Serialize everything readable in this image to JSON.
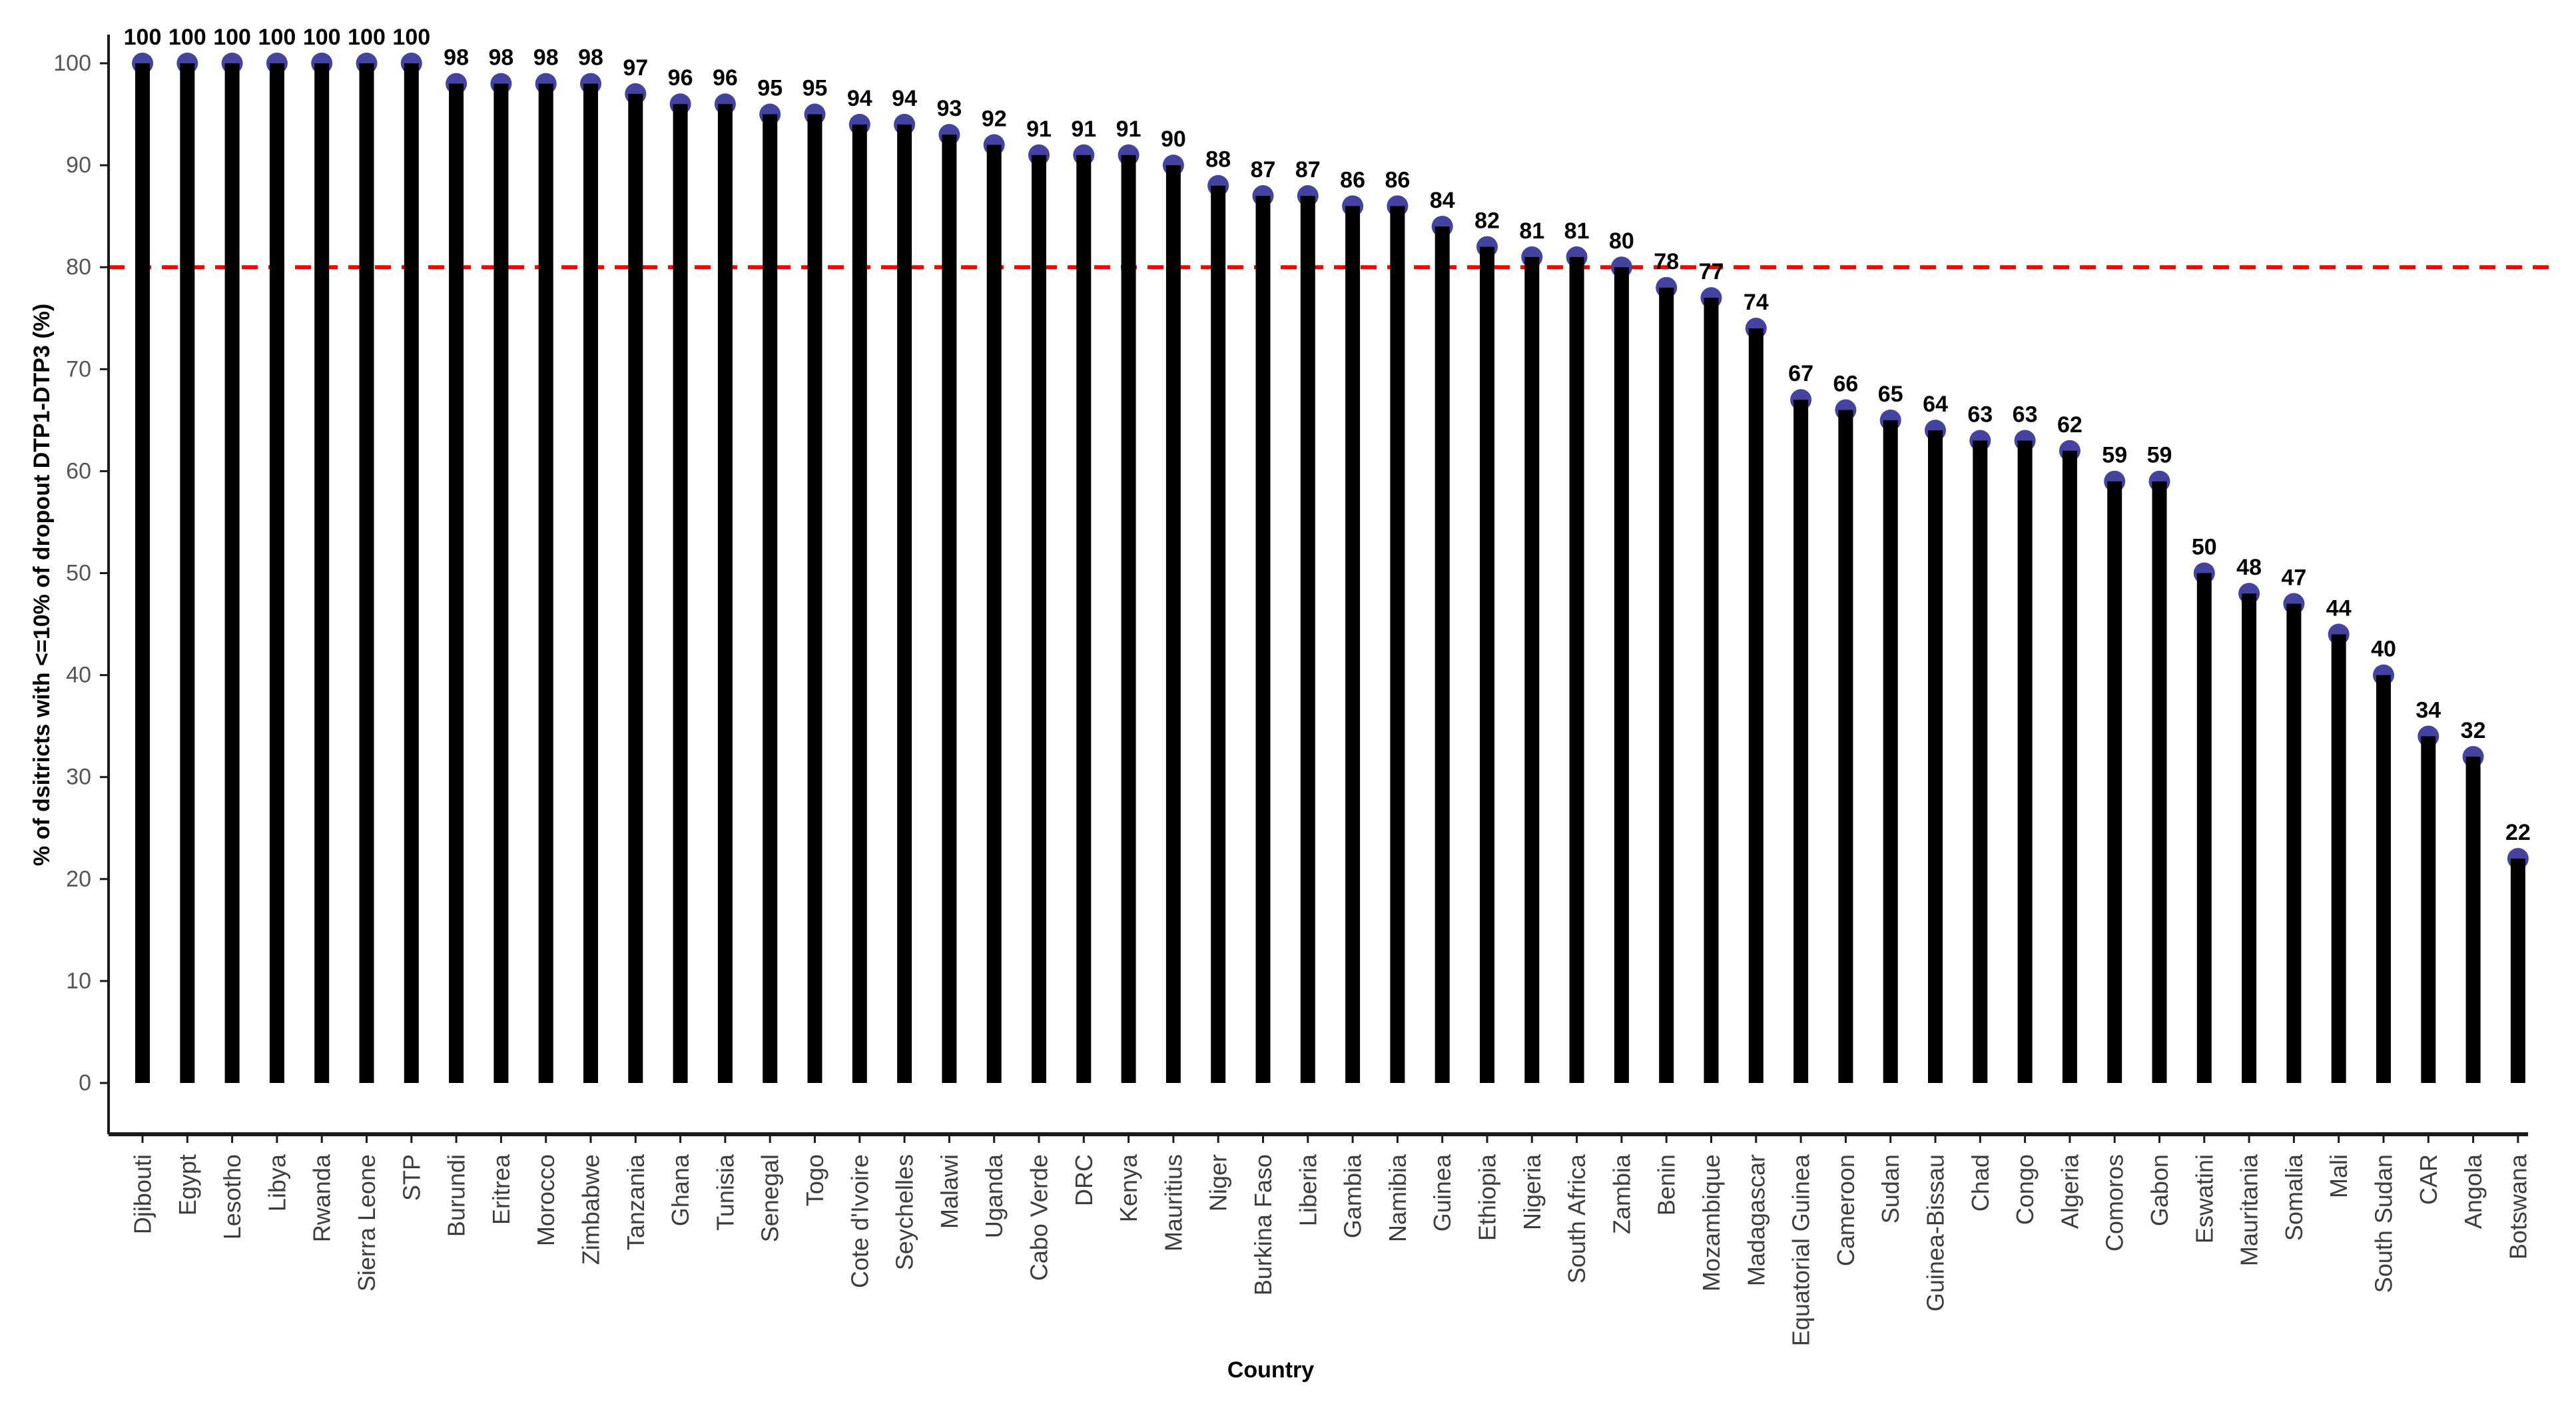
{
  "chart_data": {
    "type": "bar",
    "title": "",
    "xlabel": "Country",
    "ylabel": "% of dsitricts with <=10% of dropout DTP1-DTP3 (%)",
    "ylim": [
      0,
      100
    ],
    "yticks": [
      0,
      10,
      20,
      30,
      40,
      50,
      60,
      70,
      80,
      90,
      100
    ],
    "grid": "off",
    "legend": "none",
    "categories": [
      "Djibouti",
      "Egypt",
      "Lesotho",
      "Libya",
      "Rwanda",
      "Sierra Leone",
      "STP",
      "Burundi",
      "Eritrea",
      "Morocco",
      "Zimbabwe",
      "Tanzania",
      "Ghana",
      "Tunisia",
      "Senegal",
      "Togo",
      "Cote d'Ivoire",
      "Seychelles",
      "Malawi",
      "Uganda",
      "Cabo Verde",
      "DRC",
      "Kenya",
      "Mauritius",
      "Niger",
      "Burkina Faso",
      "Liberia",
      "Gambia",
      "Namibia",
      "Guinea",
      "Ethiopia",
      "Nigeria",
      "South Africa",
      "Zambia",
      "Benin",
      "Mozambique",
      "Madagascar",
      "Equatorial Guinea",
      "Cameroon",
      "Sudan",
      "Guinea-Bissau",
      "Chad",
      "Congo",
      "Algeria",
      "Comoros",
      "Gabon",
      "Eswatini",
      "Mauritania",
      "Somalia",
      "Mali",
      "South Sudan",
      "CAR",
      "Angola",
      "Botswana"
    ],
    "values": [
      100,
      100,
      100,
      100,
      100,
      100,
      100,
      98,
      98,
      98,
      98,
      97,
      96,
      96,
      95,
      95,
      94,
      94,
      93,
      92,
      91,
      91,
      91,
      90,
      88,
      87,
      87,
      86,
      86,
      84,
      82,
      81,
      81,
      80,
      78,
      77,
      74,
      67,
      66,
      65,
      64,
      63,
      63,
      62,
      59,
      59,
      50,
      48,
      47,
      44,
      40,
      34,
      32,
      22
    ],
    "series_style": {
      "bar_color": "#000000",
      "marker_color": "#4444A0",
      "value_label_color": "#000000",
      "tick_label_color": "#555555",
      "category_label_color": "#3d3d3d",
      "axis_color": "#1a1a1a"
    },
    "reference_line": {
      "value": 80,
      "color": "#FF0000",
      "style": "dashed"
    }
  }
}
